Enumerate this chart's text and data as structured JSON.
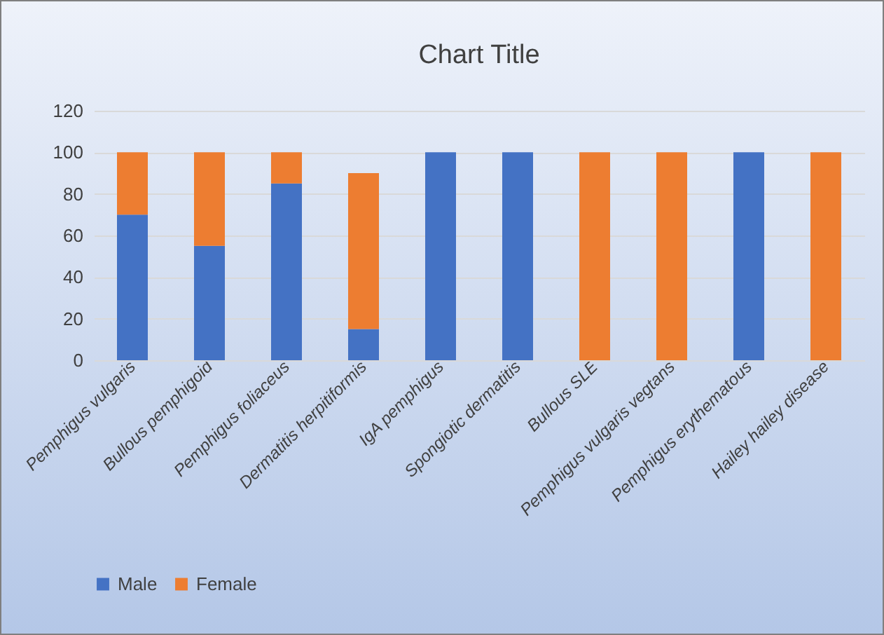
{
  "chart_data": {
    "type": "bar",
    "title": "Chart Title",
    "stacked": true,
    "categories": [
      "Pemphigus vulgaris",
      "Bullous pemphigoid",
      "Pemphigus foliaceus",
      "Dermatitis herpitiformis",
      "IgA pemphigus",
      "Spongiotic dermatitis",
      "Bullous SLE",
      "Pemphigus vulgaris vegtans",
      "Pemphigus erythematous",
      "Hailey hailey disease"
    ],
    "series": [
      {
        "name": "Male",
        "color": "#4472c4",
        "values": [
          70,
          55,
          85,
          15,
          100,
          100,
          0,
          0,
          100,
          0
        ]
      },
      {
        "name": "Female",
        "color": "#ed7d31",
        "values": [
          30,
          45,
          15,
          75,
          0,
          0,
          100,
          100,
          0,
          100
        ]
      }
    ],
    "ylim": [
      0,
      120
    ],
    "yticks": [
      0,
      20,
      40,
      60,
      80,
      100,
      120
    ],
    "grid": "y",
    "legend": "bottom"
  }
}
